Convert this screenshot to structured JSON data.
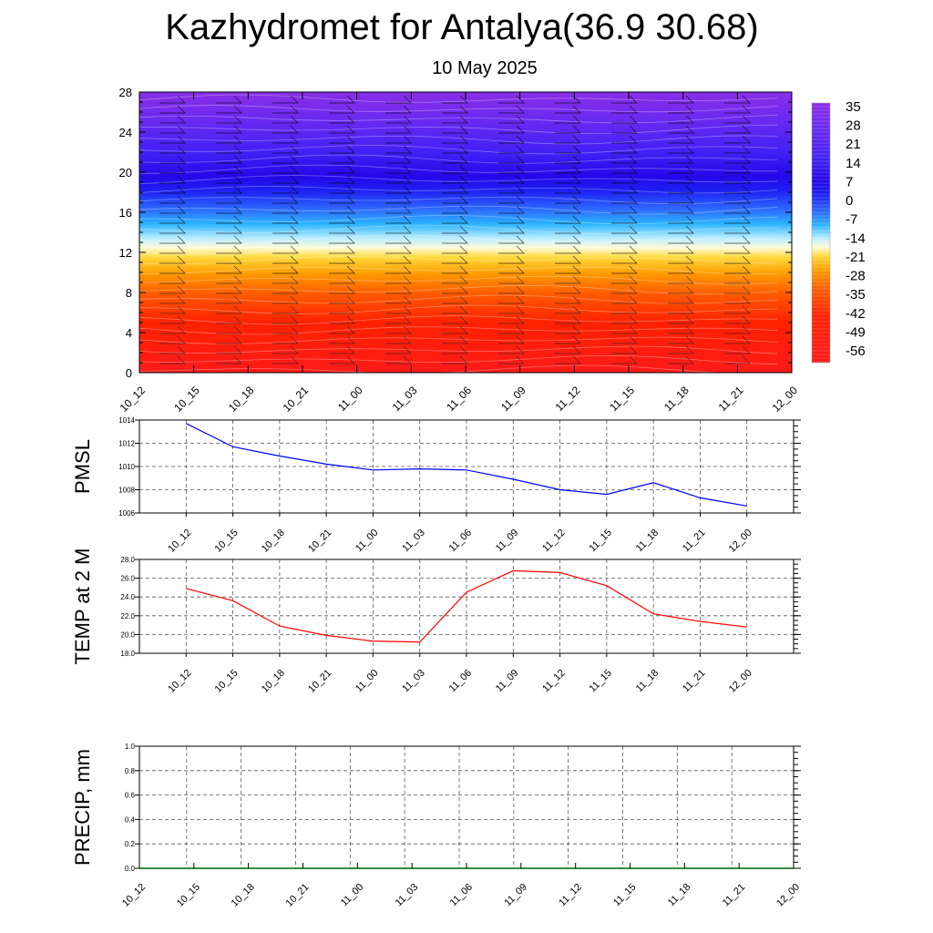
{
  "header": {
    "title": "Kazhydromet for Antalya(36.9 30.68)",
    "subtitle": "10 May 2025"
  },
  "chart_data": [
    {
      "type": "heatmap",
      "title": "Kazhydromet for Antalya(36.9 30.68)",
      "subtitle": "10 May 2025",
      "x_ticks": [
        "10_12",
        "10_15",
        "10_18",
        "10_21",
        "11_00",
        "11_03",
        "11_06",
        "11_09",
        "11_12",
        "11_15",
        "11_18",
        "11_21",
        "12_00"
      ],
      "y_ticks": [
        0,
        4,
        8,
        12,
        16,
        20,
        24,
        28
      ],
      "ylim": [
        0,
        28
      ],
      "colorbar_ticks": [
        35,
        28,
        21,
        14,
        7,
        0,
        -7,
        -14,
        -21,
        -28,
        -35,
        -42,
        -49,
        -56
      ],
      "colorbar_range": [
        -60,
        38
      ],
      "has_wind_barbs": true
    },
    {
      "type": "line",
      "ylabel": "PMSL",
      "x": [
        "10_12",
        "10_15",
        "10_18",
        "10_21",
        "11_00",
        "11_03",
        "11_06",
        "11_09",
        "11_12",
        "11_15",
        "11_18",
        "11_21",
        "12_00"
      ],
      "values": [
        1013.7,
        1011.7,
        1010.9,
        1010.2,
        1009.7,
        1009.8,
        1009.7,
        1008.9,
        1008.0,
        1007.6,
        1008.6,
        1007.3,
        1006.6
      ],
      "ylim": [
        1006,
        1014
      ],
      "y_ticks": [
        "1006",
        "1008",
        "1010",
        "1012",
        "1014"
      ],
      "color": "#0000ff",
      "grid": true
    },
    {
      "type": "line",
      "ylabel": "TEMP at 2 M",
      "x": [
        "10_12",
        "10_15",
        "10_18",
        "10_21",
        "11_00",
        "11_03",
        "11_06",
        "11_09",
        "11_12",
        "11_15",
        "11_18",
        "11_21",
        "12_00"
      ],
      "values": [
        24.9,
        23.6,
        20.9,
        19.9,
        19.3,
        19.2,
        24.5,
        26.8,
        26.6,
        25.2,
        22.2,
        21.4,
        20.8
      ],
      "ylim": [
        18,
        28
      ],
      "y_ticks": [
        "18.0",
        "20.0",
        "22.0",
        "24.0",
        "26.0",
        "28.0"
      ],
      "color": "#ff0000",
      "grid": true
    },
    {
      "type": "line",
      "ylabel": "PRECIP, mm",
      "x_ticks": [
        "10_12",
        "10_15",
        "10_18",
        "10_21",
        "11_00",
        "11_03",
        "11_06",
        "11_09",
        "11_12",
        "11_15",
        "11_18",
        "11_21",
        "12_00"
      ],
      "values": [
        0,
        0,
        0,
        0,
        0,
        0,
        0,
        0,
        0,
        0,
        0,
        0,
        0
      ],
      "ylim": [
        0,
        1
      ],
      "y_ticks": [
        "0.0",
        "0.2",
        "0.4",
        "0.6",
        "0.8",
        "1.0"
      ],
      "color": "#006400",
      "grid": true
    }
  ]
}
